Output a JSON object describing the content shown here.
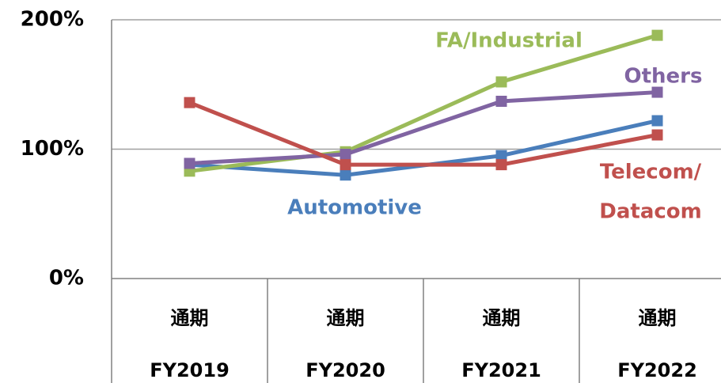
{
  "chart_data": {
    "type": "line",
    "categories": [
      "FY2019",
      "FY2020",
      "FY2021",
      "FY2022"
    ],
    "category_group_labels": [
      "通期",
      "通期",
      "通期",
      "通期"
    ],
    "series": [
      {
        "name": [
          "Automotive"
        ],
        "color": "#4a7ebb",
        "values": [
          88,
          80,
          95,
          122
        ]
      },
      {
        "name": [
          "FA/Industrial"
        ],
        "color": "#9bbb59",
        "values": [
          83,
          98,
          152,
          188
        ]
      },
      {
        "name": [
          "Others"
        ],
        "color": "#8064a2",
        "values": [
          89,
          96,
          137,
          144
        ]
      },
      {
        "name": [
          "Telecom/",
          "Datacom"
        ],
        "color": "#c0504d",
        "values": [
          136,
          88,
          88,
          111
        ]
      }
    ],
    "ylim": [
      0,
      200
    ],
    "yticks": [
      {
        "value": 0,
        "label": "0%"
      },
      {
        "value": 100,
        "label": "100%"
      },
      {
        "value": 200,
        "label": "200%"
      }
    ],
    "grid": true
  }
}
